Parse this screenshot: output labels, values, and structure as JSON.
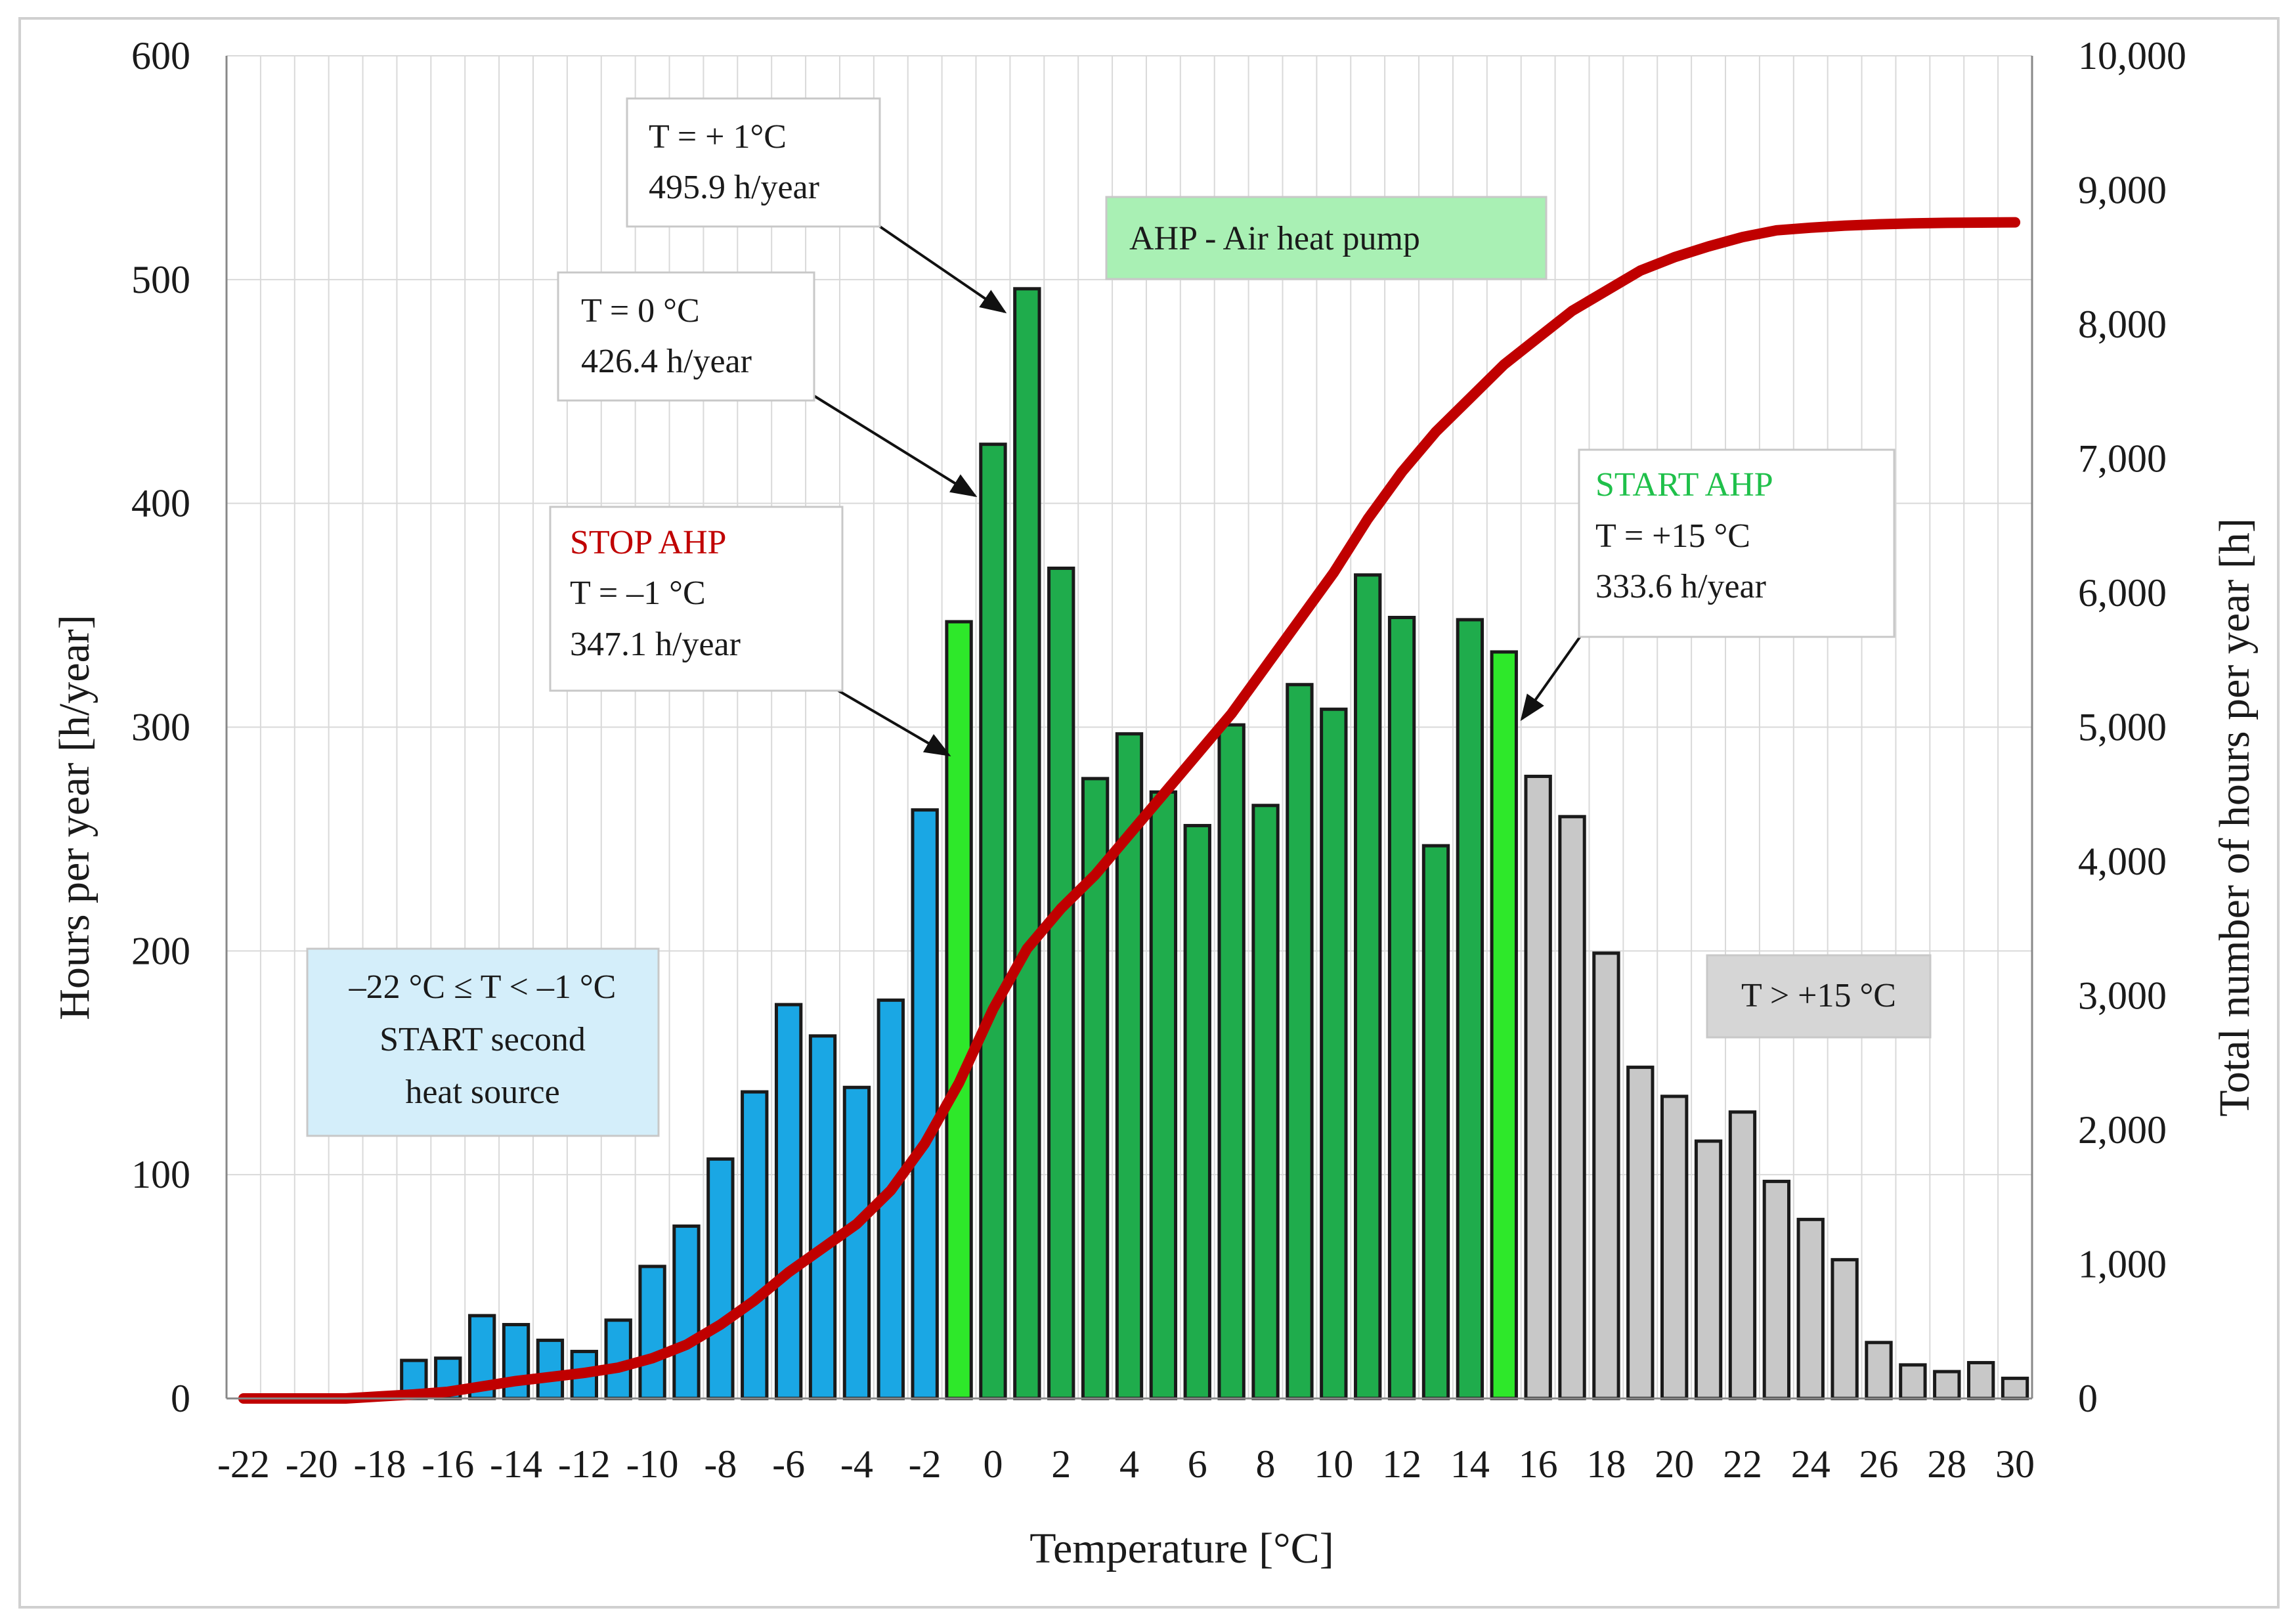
{
  "chart_data": {
    "type": "bar",
    "xlabel": "Temperature [°C]",
    "ylabel": "Hours per year [h/year]",
    "y2label": "Total number of hours per year [h]",
    "ylim": [
      0,
      600
    ],
    "y2lim": [
      0,
      10000
    ],
    "ytick_labels": [
      "0",
      "100",
      "200",
      "300",
      "400",
      "500",
      "600"
    ],
    "y2tick_labels": [
      "0",
      "1,000",
      "2,000",
      "3,000",
      "4,000",
      "5,000",
      "6,000",
      "7,000",
      "8,000",
      "9,000",
      "10,000"
    ],
    "xtick_labels": [
      "-22",
      "-20",
      "-18",
      "-16",
      "-14",
      "-12",
      "-10",
      "-8",
      "-6",
      "-4",
      "-2",
      "0",
      "2",
      "4",
      "6",
      "8",
      "10",
      "12",
      "14",
      "16",
      "18",
      "20",
      "22",
      "24",
      "26",
      "28",
      "30"
    ],
    "categories": [
      -22,
      -21,
      -20,
      -19,
      -18,
      -17,
      -16,
      -15,
      -14,
      -13,
      -12,
      -11,
      -10,
      -9,
      -8,
      -7,
      -6,
      -5,
      -4,
      -3,
      -2,
      -1,
      0,
      1,
      2,
      3,
      4,
      5,
      6,
      7,
      8,
      9,
      10,
      11,
      12,
      13,
      14,
      15,
      16,
      17,
      18,
      19,
      20,
      21,
      22,
      23,
      24,
      25,
      26,
      27,
      28,
      29,
      30
    ],
    "series": [
      {
        "name": "Hours per year",
        "type": "bar",
        "values": [
          0,
          0,
          0,
          0,
          0,
          17,
          18,
          37,
          33,
          26,
          21,
          35,
          59,
          77,
          107,
          137,
          176,
          162,
          139,
          178,
          263,
          347.1,
          426.4,
          495.9,
          371,
          277,
          297,
          271,
          256,
          301,
          265,
          319,
          308,
          368,
          349,
          247,
          348,
          333.6,
          278,
          260,
          199,
          148,
          135,
          115,
          128,
          97,
          80,
          62,
          25,
          15,
          12,
          16,
          9
        ],
        "colors": {
          "second_source": "#1aa7e4",
          "ahp": "#1fac4c",
          "ahp_boundary": "#2ee82a",
          "above": "#c8c8c8"
        }
      },
      {
        "name": "Cumulative hours",
        "type": "line",
        "color": "#c00000",
        "x": [
          -22,
          -21,
          -20,
          -19,
          -18,
          -17,
          -16,
          -15,
          -14,
          -13,
          -12,
          -11,
          -10,
          -9,
          -8,
          -7,
          -6,
          -5,
          -4,
          -3,
          -2,
          -1,
          0,
          1,
          2,
          3,
          4,
          5,
          6,
          7,
          8,
          9,
          10,
          11,
          12,
          13,
          14,
          15,
          16,
          17,
          18,
          19,
          20,
          21,
          22,
          23,
          24,
          25,
          26,
          27,
          28,
          29,
          30
        ],
        "values": [
          0,
          0,
          0,
          0,
          15,
          30,
          50,
          90,
          130,
          160,
          190,
          230,
          300,
          400,
          550,
          730,
          940,
          1120,
          1300,
          1550,
          1900,
          2350,
          2900,
          3350,
          3650,
          3900,
          4200,
          4500,
          4800,
          5100,
          5450,
          5800,
          6150,
          6550,
          6900,
          7200,
          7450,
          7700,
          7900,
          8100,
          8250,
          8400,
          8500,
          8580,
          8650,
          8700,
          8720,
          8735,
          8745,
          8752,
          8756,
          8758,
          8760
        ]
      }
    ],
    "annotations": {
      "t_plus1": {
        "line1": "T = + 1°C",
        "line2": "495.9 h/year"
      },
      "ahp_box": {
        "text": "AHP - Air heat pump",
        "color": "#a9f0b4"
      },
      "t_zero": {
        "line1": "T = 0 °C",
        "line2": "426.4 h/year"
      },
      "stop_ahp": {
        "title": "STOP AHP",
        "title_color": "#c00000",
        "line1": "T = –1 °C",
        "line2": "347.1 h/year"
      },
      "start_ahp": {
        "title": "START AHP",
        "title_color": "#1fc04a",
        "line1": "T = +15 °C",
        "line2": "333.6 h/year"
      },
      "second_source": {
        "line1": "–22 °C ≤ T < –1 °C",
        "line2": "START second",
        "line3": "heat source",
        "color": "#d4eefa"
      },
      "above_15": {
        "text": "T > +15 °C",
        "color": "#d6d6d6"
      }
    }
  }
}
